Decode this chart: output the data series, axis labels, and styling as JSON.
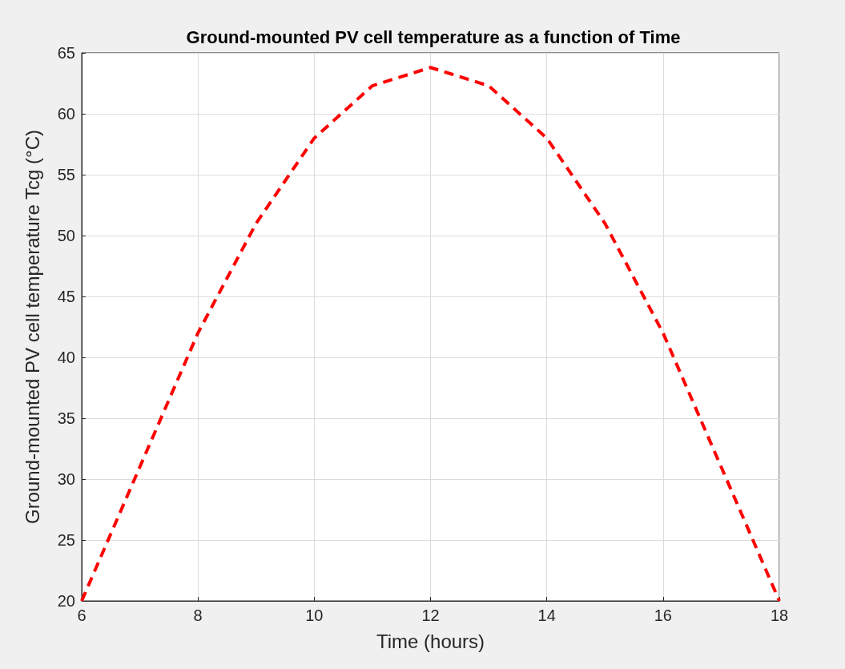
{
  "chart_data": {
    "type": "line",
    "title": "Ground-mounted PV cell temperature as a function of Time",
    "xlabel": "Time (hours)",
    "ylabel": "Ground-mounted PV cell temperature Tcg (°C)",
    "x": [
      6,
      7,
      8,
      9,
      10,
      11,
      12,
      13,
      14,
      15,
      16,
      17,
      18
    ],
    "series": [
      {
        "color": "#ff0000",
        "values": [
          20,
          31,
          42,
          51,
          58,
          62.3,
          63.8,
          62.3,
          58,
          51,
          42,
          31,
          20
        ]
      }
    ],
    "xlim": [
      6,
      18
    ],
    "xticks": [
      6,
      8,
      10,
      12,
      14,
      16,
      18
    ],
    "ylim": [
      20,
      65
    ],
    "yticks": [
      20,
      25,
      30,
      35,
      40,
      45,
      50,
      55,
      60,
      65
    ],
    "grid": true,
    "marker": "none",
    "line_style": "dashed"
  }
}
